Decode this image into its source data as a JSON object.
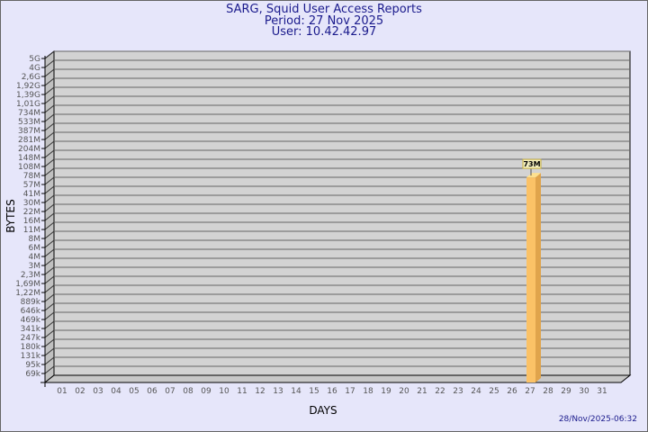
{
  "header": {
    "title": "SARG, Squid User Access Reports",
    "period": "Period: 27 Nov 2025",
    "user": "User: 10.42.42.97"
  },
  "footer": {
    "timestamp": "28/Nov/2025-06:32"
  },
  "colors": {
    "background": "#e6e6fa",
    "plot": "#d3d3d3",
    "bar": "#fbc267",
    "title": "#1a1a8c"
  },
  "chart_data": {
    "type": "bar",
    "style": "3d",
    "xlabel": "DAYS",
    "ylabel": "BYTES",
    "y_scale": "log",
    "grid": true,
    "categories": [
      "01",
      "02",
      "03",
      "04",
      "05",
      "06",
      "07",
      "08",
      "09",
      "10",
      "11",
      "12",
      "13",
      "14",
      "15",
      "16",
      "17",
      "18",
      "19",
      "20",
      "21",
      "22",
      "23",
      "24",
      "25",
      "26",
      "27",
      "28",
      "29",
      "30",
      "31"
    ],
    "y_ticks": [
      "5G",
      "4G",
      "2,6G",
      "1,92G",
      "1,39G",
      "1,01G",
      "734M",
      "533M",
      "387M",
      "281M",
      "204M",
      "148M",
      "108M",
      "78M",
      "57M",
      "41M",
      "30M",
      "22M",
      "16M",
      "11M",
      "8M",
      "6M",
      "4M",
      "3M",
      "2,3M",
      "1,69M",
      "1,22M",
      "889k",
      "646k",
      "469k",
      "341k",
      "247k",
      "180k",
      "131k",
      "95k",
      "69k"
    ],
    "bars": [
      {
        "day": "27",
        "value_bytes": 73000000,
        "label": "73M"
      }
    ]
  }
}
